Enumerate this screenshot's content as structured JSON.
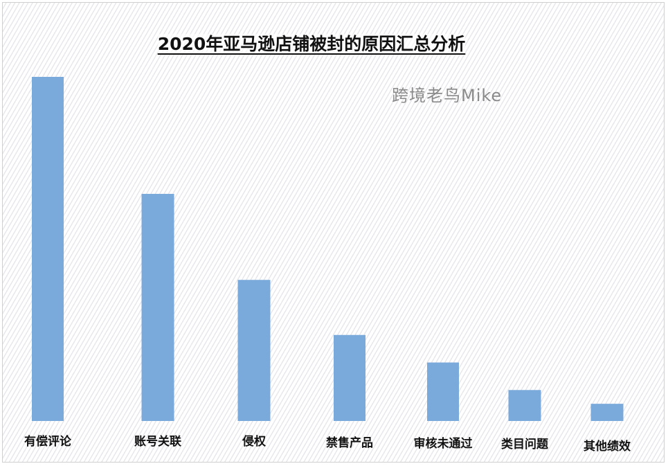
{
  "chart_data": {
    "type": "bar",
    "title": "2020年亚马逊店铺被封的原因汇总分析",
    "watermark": "跨境老鸟Mike",
    "categories": [
      "有偿评论",
      "账号关联",
      "侵权",
      "禁售产品",
      "审核未通过",
      "类目问题",
      "其他绩效"
    ],
    "values": [
      100,
      66,
      41,
      25,
      17,
      9,
      5
    ],
    "ylim": [
      0,
      100
    ],
    "bar_color": "#7aaadb",
    "grid": false,
    "xlabel": "",
    "ylabel": ""
  }
}
